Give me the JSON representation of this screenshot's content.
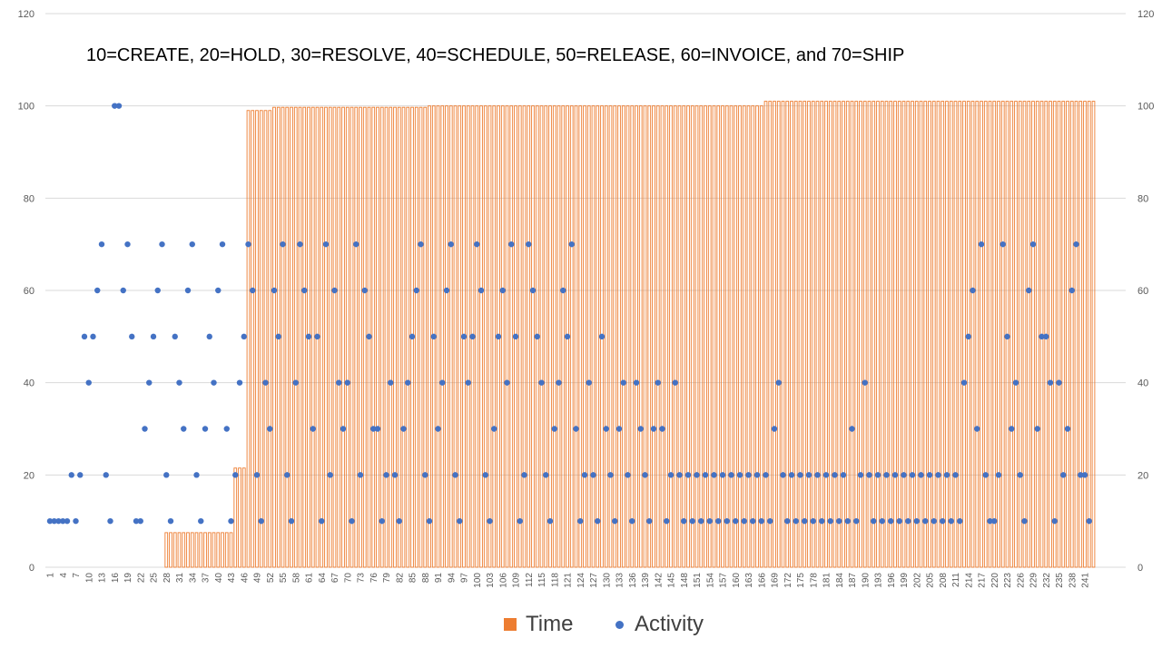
{
  "annotation": "10=CREATE, 20=HOLD, 30=RESOLVE, 40=SCHEDULE, 50=RELEASE, 60=INVOICE, and 70=SHIP",
  "colors": {
    "time": "#ED7D31",
    "activity": "#4472C4",
    "grid": "#D9D9D9",
    "axis_text": "#595959"
  },
  "chart_data": {
    "type": "bar+scatter",
    "title": "",
    "grid": true,
    "legend_position": "bottom",
    "y_left": {
      "min": 0,
      "max": 120,
      "ticks": [
        0,
        20,
        40,
        60,
        80,
        100,
        120
      ]
    },
    "y_right": {
      "min": 0,
      "max": 120,
      "ticks": [
        0,
        20,
        40,
        60,
        80,
        100,
        120
      ]
    },
    "x_range": [
      1,
      243
    ],
    "x_tick_labels": [
      1,
      4,
      7,
      10,
      13,
      16,
      19,
      22,
      25,
      28,
      31,
      34,
      37,
      40,
      43,
      46,
      49,
      52,
      55,
      58,
      61,
      64,
      67,
      70,
      73,
      76,
      79,
      82,
      85,
      88,
      91,
      94,
      97,
      100,
      103,
      106,
      109,
      112,
      115,
      118,
      121,
      124,
      127,
      130,
      133,
      136,
      139,
      142,
      145,
      148,
      151,
      154,
      157,
      160,
      163,
      166,
      169,
      172,
      175,
      178,
      181,
      184,
      187,
      190,
      193,
      196,
      199,
      202,
      205,
      208,
      211,
      214,
      217,
      220,
      223,
      226,
      229,
      232,
      235,
      238,
      241
    ],
    "series": [
      {
        "name": "Time",
        "type": "bar",
        "axis": "right",
        "segments": [
          {
            "from": 1,
            "to": 27,
            "value": 0
          },
          {
            "from": 28,
            "to": 43,
            "value": 7.5
          },
          {
            "from": 44,
            "to": 46,
            "value": 21.5
          },
          {
            "from": 47,
            "to": 52,
            "value": 99
          },
          {
            "from": 53,
            "to": 88,
            "value": 99.7
          },
          {
            "from": 89,
            "to": 166,
            "value": 100
          },
          {
            "from": 167,
            "to": 243,
            "value": 101
          }
        ]
      },
      {
        "name": "Activity",
        "type": "scatter",
        "axis": "left",
        "values": [
          10,
          10,
          10,
          10,
          10,
          20,
          10,
          20,
          50,
          40,
          50,
          60,
          70,
          20,
          10,
          100,
          100,
          60,
          70,
          50,
          10,
          10,
          30,
          40,
          50,
          60,
          70,
          20,
          10,
          50,
          40,
          30,
          60,
          70,
          20,
          10,
          30,
          50,
          40,
          60,
          70,
          30,
          10,
          20,
          40,
          50,
          70,
          60,
          20,
          10,
          40,
          30,
          60,
          50,
          70,
          20,
          10,
          40,
          70,
          60,
          50,
          30,
          50,
          10,
          70,
          20,
          60,
          40,
          30,
          40,
          10,
          70,
          20,
          60,
          50,
          30,
          30,
          10,
          20,
          40,
          20,
          10,
          30,
          40,
          50,
          60,
          70,
          20,
          10,
          50,
          30,
          40,
          60,
          70,
          20,
          10,
          50,
          40,
          50,
          70,
          60,
          20,
          10,
          30,
          50,
          60,
          40,
          70,
          50,
          10,
          20,
          70,
          60,
          50,
          40,
          20,
          10,
          30,
          40,
          60,
          50,
          70,
          30,
          10,
          20,
          40,
          20,
          10,
          50,
          30,
          20,
          10,
          30,
          40,
          20,
          10,
          40,
          30,
          20,
          10,
          30,
          40,
          30,
          10,
          20,
          40,
          20,
          10,
          20,
          10,
          20,
          10,
          20,
          10,
          20,
          10,
          20,
          10,
          20,
          10,
          20,
          10,
          20,
          10,
          20,
          10,
          20,
          10,
          30,
          40,
          20,
          10,
          20,
          10,
          20,
          10,
          20,
          10,
          20,
          10,
          20,
          10,
          20,
          10,
          20,
          10,
          30,
          10,
          20,
          40,
          20,
          10,
          20,
          10,
          20,
          10,
          20,
          10,
          20,
          10,
          20,
          10,
          20,
          10,
          20,
          10,
          20,
          10,
          20,
          10,
          20,
          10,
          40,
          50,
          60,
          30,
          70,
          20,
          10,
          10,
          20,
          70,
          50,
          30,
          40,
          20,
          10,
          60,
          70,
          30,
          50,
          50,
          40,
          10,
          40,
          20,
          30,
          60,
          70,
          20,
          20,
          10
        ]
      }
    ]
  }
}
